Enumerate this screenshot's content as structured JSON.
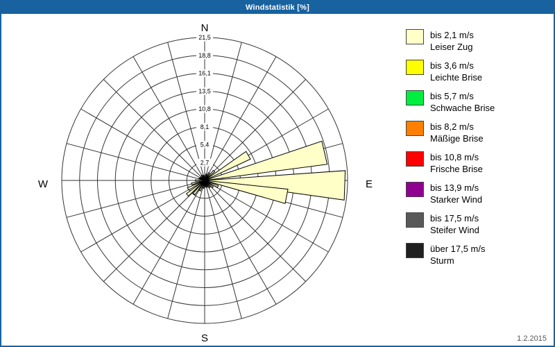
{
  "window": {
    "title": "Windstatistik [%]",
    "date": "1.2.2015"
  },
  "compass": {
    "n": "N",
    "e": "E",
    "s": "S",
    "w": "W"
  },
  "legend": {
    "items": [
      {
        "color": "#FFFFC8",
        "speed": "bis 2,1 m/s",
        "name": "Leiser Zug"
      },
      {
        "color": "#FFFF00",
        "speed": "bis 3,6 m/s",
        "name": "Leichte Brise"
      },
      {
        "color": "#00EE40",
        "speed": "bis 5,7 m/s",
        "name": "Schwache Brise"
      },
      {
        "color": "#FF8000",
        "speed": "bis 8,2 m/s",
        "name": "Mäßige Brise"
      },
      {
        "color": "#FF0000",
        "speed": "bis 10,8 m/s",
        "name": "Frische Brise"
      },
      {
        "color": "#900090",
        "speed": "bis 13,9 m/s",
        "name": "Starker Wind"
      },
      {
        "color": "#595959",
        "speed": "bis 17,5 m/s",
        "name": "Steifer Wind"
      },
      {
        "color": "#1F1F1F",
        "speed": "über 17,5 m/s",
        "name": "Sturm"
      }
    ]
  },
  "chart_data": {
    "type": "wind-rose",
    "title": "Windstatistik [%]",
    "units": "%",
    "max_value": 21.5,
    "sector_step_deg": 15,
    "ring_values": [
      2.7,
      5.4,
      8.1,
      10.8,
      13.5,
      16.1,
      18.8,
      21.5
    ],
    "ring_labels": [
      "2,7",
      "5,4",
      "8,1",
      "10,8",
      "13,5",
      "16,1",
      "18,8",
      "21,5"
    ],
    "grid_color": "#333333",
    "series": [
      {
        "name": "bis 2,1 m/s",
        "color": "#FFFFC8",
        "petals": [
          {
            "dir_deg": 60,
            "value": 7.6,
            "width_deg": 10
          },
          {
            "dir_deg": 77,
            "value": 18.6,
            "width_deg": 11
          },
          {
            "dir_deg": 92,
            "value": 21.2,
            "width_deg": 12
          },
          {
            "dir_deg": 101,
            "value": 12.6,
            "width_deg": 10
          },
          {
            "dir_deg": 15,
            "value": 1.0,
            "width_deg": 8
          },
          {
            "dir_deg": 30,
            "value": 1.3,
            "width_deg": 8
          },
          {
            "dir_deg": 45,
            "value": 2.0,
            "width_deg": 8
          },
          {
            "dir_deg": 115,
            "value": 2.2,
            "width_deg": 8
          },
          {
            "dir_deg": 130,
            "value": 1.6,
            "width_deg": 8
          },
          {
            "dir_deg": 145,
            "value": 1.3,
            "width_deg": 8
          },
          {
            "dir_deg": 160,
            "value": 1.1,
            "width_deg": 8
          },
          {
            "dir_deg": 175,
            "value": 1.0,
            "width_deg": 8
          },
          {
            "dir_deg": 190,
            "value": 1.2,
            "width_deg": 8
          },
          {
            "dir_deg": 205,
            "value": 1.7,
            "width_deg": 8
          },
          {
            "dir_deg": 218,
            "value": 2.6,
            "width_deg": 8
          },
          {
            "dir_deg": 230,
            "value": 3.4,
            "width_deg": 8
          },
          {
            "dir_deg": 243,
            "value": 2.8,
            "width_deg": 8
          },
          {
            "dir_deg": 255,
            "value": 2.0,
            "width_deg": 8
          },
          {
            "dir_deg": 270,
            "value": 1.4,
            "width_deg": 8
          },
          {
            "dir_deg": 290,
            "value": 0.9,
            "width_deg": 8
          },
          {
            "dir_deg": 310,
            "value": 0.8,
            "width_deg": 8
          },
          {
            "dir_deg": 330,
            "value": 0.9,
            "width_deg": 8
          },
          {
            "dir_deg": 348,
            "value": 0.8,
            "width_deg": 8
          }
        ]
      }
    ]
  }
}
